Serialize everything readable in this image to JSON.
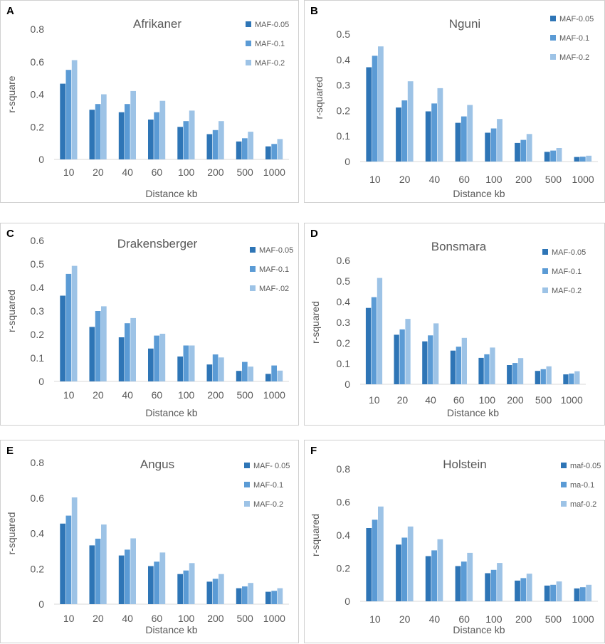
{
  "colors": [
    "#2e75b6",
    "#5b9bd5",
    "#9dc3e6"
  ],
  "chart_data": [
    {
      "letter": "A",
      "type": "bar",
      "title": "Afrikaner",
      "xlabel": "Distance kb",
      "ylabel": "r-square",
      "categories": [
        "10",
        "20",
        "40",
        "60",
        "100",
        "200",
        "500",
        "1000"
      ],
      "ylim": [
        0,
        0.8
      ],
      "yticks": [
        "0",
        "0.2",
        "0.4",
        "0.6",
        "0.8"
      ],
      "ytick_values": [
        0,
        0.2,
        0.4,
        0.6,
        0.8
      ],
      "series": [
        {
          "name": "MAF-0.05",
          "values": [
            0.465,
            0.305,
            0.29,
            0.245,
            0.2,
            0.155,
            0.11,
            0.08
          ]
        },
        {
          "name": "MAF-0.1",
          "values": [
            0.55,
            0.34,
            0.34,
            0.29,
            0.235,
            0.18,
            0.13,
            0.095
          ]
        },
        {
          "name": "MAF-0.2",
          "values": [
            0.61,
            0.4,
            0.42,
            0.36,
            0.3,
            0.235,
            0.17,
            0.125
          ]
        }
      ]
    },
    {
      "letter": "B",
      "type": "bar",
      "title": "Nguni",
      "xlabel": "Distance kb",
      "ylabel": "r-squared",
      "categories": [
        "10",
        "20",
        "40",
        "60",
        "100",
        "200",
        "500",
        "1000"
      ],
      "ylim": [
        0,
        0.5
      ],
      "yticks": [
        "0",
        "0.1",
        "0.2",
        "0.3",
        "0.4",
        "0.5"
      ],
      "ytick_values": [
        0,
        0.1,
        0.2,
        0.3,
        0.4,
        0.5
      ],
      "series": [
        {
          "name": "MAF-0.05",
          "values": [
            0.37,
            0.212,
            0.197,
            0.152,
            0.113,
            0.073,
            0.038,
            0.018
          ]
        },
        {
          "name": "MAF-0.1",
          "values": [
            0.415,
            0.24,
            0.228,
            0.177,
            0.13,
            0.085,
            0.043,
            0.019
          ]
        },
        {
          "name": "MAF-0.2",
          "values": [
            0.452,
            0.315,
            0.288,
            0.222,
            0.167,
            0.108,
            0.053,
            0.023
          ]
        }
      ]
    },
    {
      "letter": "C",
      "type": "bar",
      "title": "Drakensberger",
      "xlabel": "Distance kb",
      "ylabel": "r-squared",
      "categories": [
        "10",
        "20",
        "40",
        "60",
        "100",
        "200",
        "500",
        "1000"
      ],
      "ylim": [
        0,
        0.6
      ],
      "yticks": [
        "0",
        "0.1",
        "0.2",
        "0.3",
        "0.4",
        "0.5",
        "0.6"
      ],
      "ytick_values": [
        0,
        0.1,
        0.2,
        0.3,
        0.4,
        0.5,
        0.6
      ],
      "series": [
        {
          "name": "MAF-0.05",
          "values": [
            0.365,
            0.232,
            0.188,
            0.14,
            0.106,
            0.072,
            0.045,
            0.032
          ]
        },
        {
          "name": "MAF-0.1",
          "values": [
            0.458,
            0.3,
            0.248,
            0.195,
            0.153,
            0.115,
            0.083,
            0.068
          ]
        },
        {
          "name": "MAF-.02",
          "values": [
            0.492,
            0.32,
            0.27,
            0.203,
            0.153,
            0.102,
            0.063,
            0.046
          ]
        }
      ]
    },
    {
      "letter": "D",
      "type": "bar",
      "title": "Bonsmara",
      "xlabel": "Distance kb",
      "ylabel": "r-squared",
      "categories": [
        "10",
        "20",
        "40",
        "60",
        "100",
        "200",
        "500",
        "1000"
      ],
      "ylim": [
        0,
        0.6
      ],
      "yticks": [
        "0",
        "0.1",
        "0.2",
        "0.3",
        "0.4",
        "0.5",
        "0.6"
      ],
      "ytick_values": [
        0,
        0.1,
        0.2,
        0.3,
        0.4,
        0.5,
        0.6
      ],
      "series": [
        {
          "name": "MAF-0.05",
          "values": [
            0.37,
            0.24,
            0.208,
            0.163,
            0.128,
            0.093,
            0.065,
            0.048
          ]
        },
        {
          "name": "MAF-0.1",
          "values": [
            0.422,
            0.266,
            0.237,
            0.182,
            0.145,
            0.103,
            0.073,
            0.052
          ]
        },
        {
          "name": "MAF-0.2",
          "values": [
            0.515,
            0.317,
            0.295,
            0.225,
            0.178,
            0.127,
            0.087,
            0.063
          ]
        }
      ]
    },
    {
      "letter": "E",
      "type": "bar",
      "title": "Angus",
      "xlabel": "Distance kb",
      "ylabel": "r-squared",
      "categories": [
        "10",
        "20",
        "40",
        "60",
        "100",
        "200",
        "500",
        "1000"
      ],
      "ylim": [
        0,
        0.8
      ],
      "yticks": [
        "0",
        "0.2",
        "0.4",
        "0.6",
        "0.8"
      ],
      "ytick_values": [
        0,
        0.2,
        0.4,
        0.6,
        0.8
      ],
      "series": [
        {
          "name": "MAF- 0.05",
          "values": [
            0.455,
            0.332,
            0.275,
            0.215,
            0.17,
            0.127,
            0.09,
            0.07
          ]
        },
        {
          "name": "MAF-0.1",
          "values": [
            0.5,
            0.37,
            0.308,
            0.24,
            0.19,
            0.143,
            0.1,
            0.075
          ]
        },
        {
          "name": "MAF-0.2",
          "values": [
            0.603,
            0.45,
            0.372,
            0.292,
            0.232,
            0.17,
            0.12,
            0.09
          ]
        }
      ]
    },
    {
      "letter": "F",
      "type": "bar",
      "title": "Holstein",
      "xlabel": "Distance kb",
      "ylabel": "r-squared",
      "categories": [
        "10",
        "20",
        "40",
        "60",
        "100",
        "200",
        "500",
        "1000"
      ],
      "ylim": [
        0,
        0.8
      ],
      "yticks": [
        "0",
        "0.2",
        "0.4",
        "0.6",
        "0.8"
      ],
      "ytick_values": [
        0,
        0.2,
        0.4,
        0.6,
        0.8
      ],
      "series": [
        {
          "name": "maf-0.05",
          "values": [
            0.443,
            0.343,
            0.273,
            0.213,
            0.17,
            0.125,
            0.095,
            0.078
          ]
        },
        {
          "name": "ma-0.1",
          "values": [
            0.493,
            0.385,
            0.308,
            0.24,
            0.19,
            0.14,
            0.1,
            0.085
          ]
        },
        {
          "name": "maf-0.2",
          "values": [
            0.573,
            0.452,
            0.375,
            0.293,
            0.232,
            0.167,
            0.12,
            0.1
          ]
        }
      ]
    }
  ]
}
